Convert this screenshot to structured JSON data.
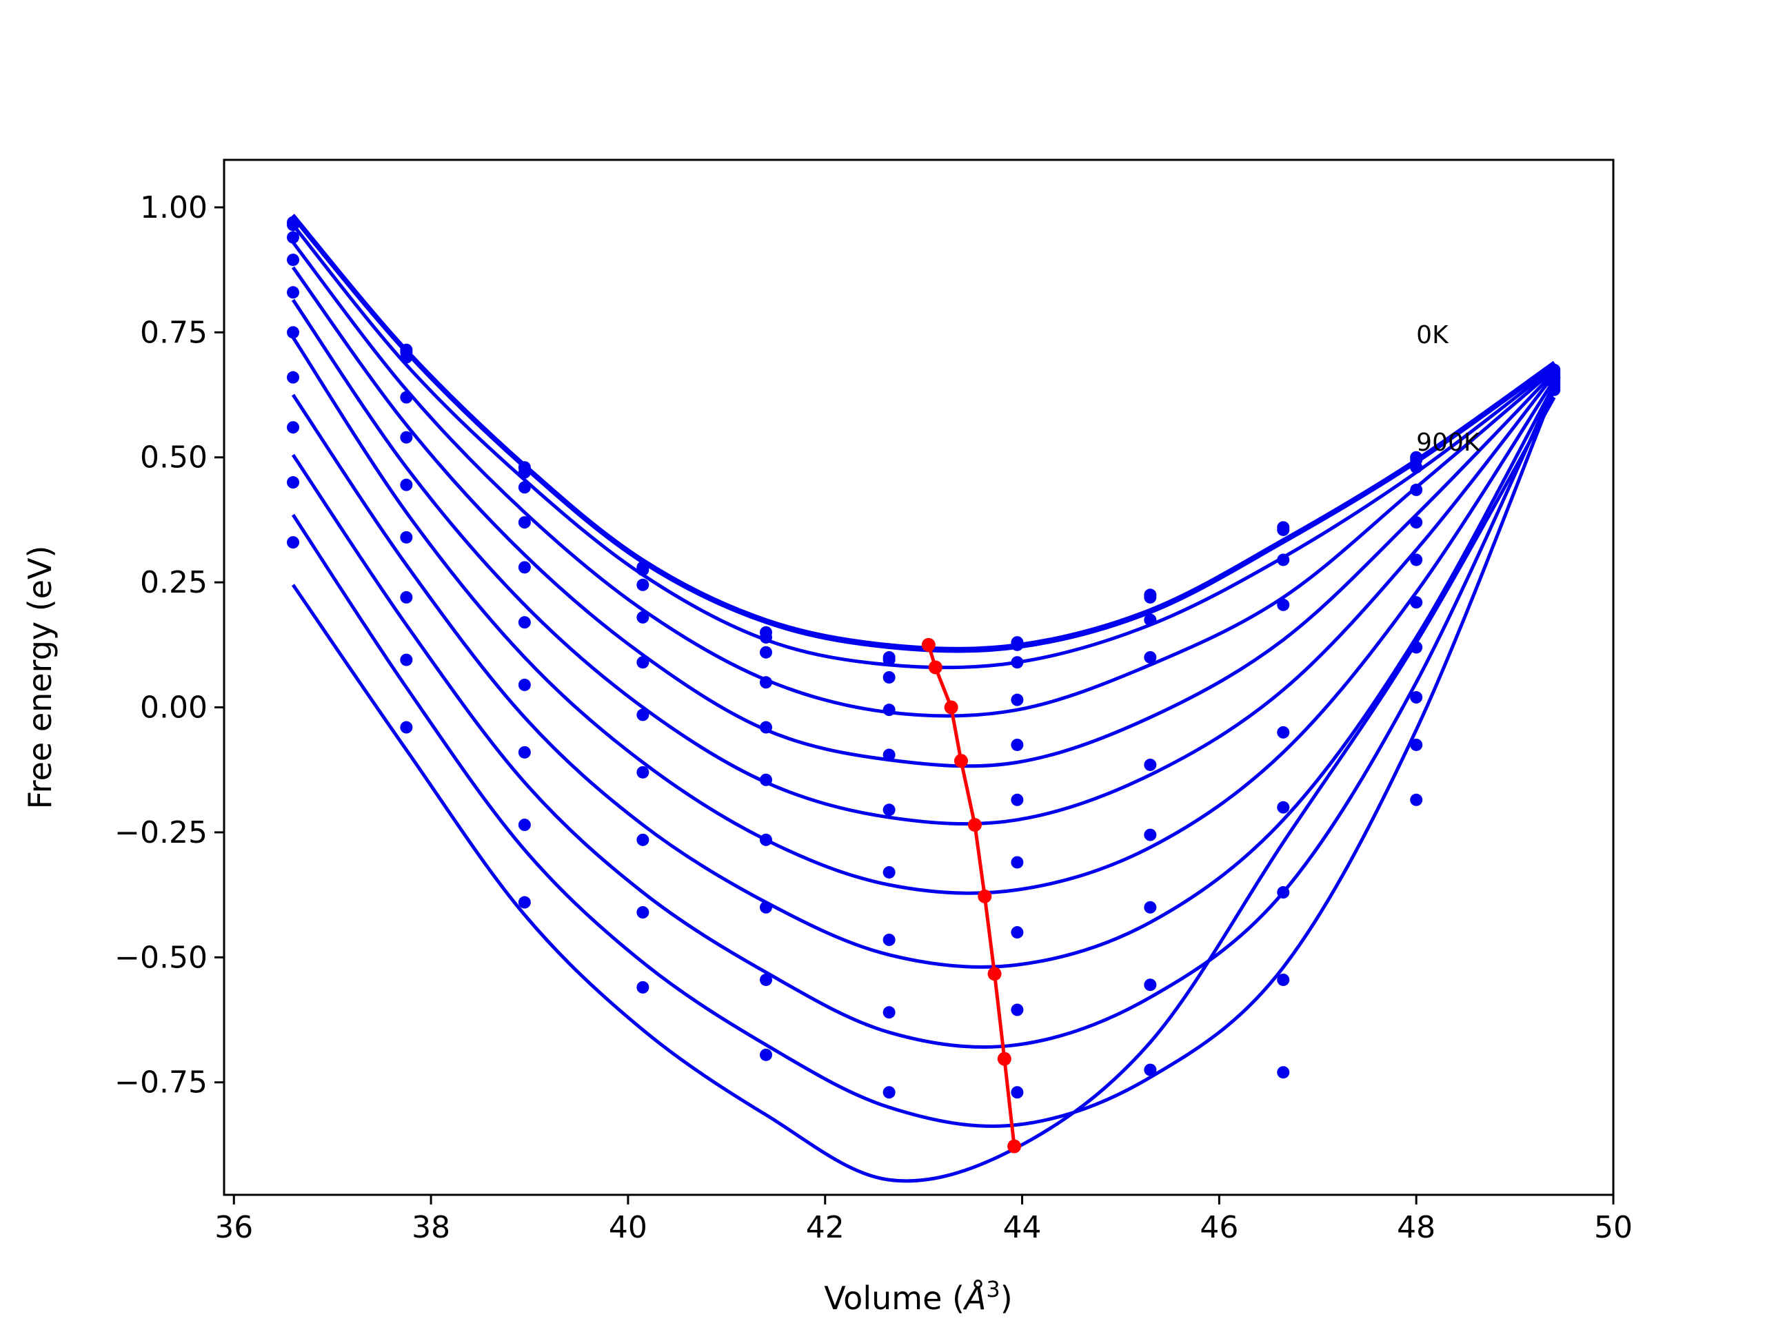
{
  "chart_data": {
    "type": "line",
    "title": "",
    "xlabel": "Volume (Å³)",
    "xlabel_parts": {
      "base": "Volume (",
      "symbol": "Å",
      "exp": "3",
      "close": ")"
    },
    "ylabel": "Free energy (eV)",
    "xlim": [
      35.9,
      50.0
    ],
    "ylim": [
      -0.975,
      1.095
    ],
    "xticks": [
      36,
      38,
      40,
      42,
      44,
      46,
      48,
      50
    ],
    "xtick_labels": [
      "36",
      "38",
      "40",
      "42",
      "44",
      "46",
      "48",
      "50"
    ],
    "yticks": [
      1.0,
      0.75,
      0.5,
      0.25,
      0.0,
      -0.25,
      -0.5,
      -0.75
    ],
    "ytick_labels": [
      "1.00",
      "0.75",
      "0.50",
      "0.25",
      "0.00",
      "−0.25",
      "−0.50",
      "−0.75"
    ],
    "grid": false,
    "annotations": [
      {
        "text": "0K",
        "x": 48.0,
        "y": 0.745
      },
      {
        "text": "900K",
        "x": 48.0,
        "y": 0.53
      }
    ],
    "volumes": [
      36.6,
      37.75,
      38.95,
      40.15,
      41.4,
      42.65,
      43.95,
      45.3,
      46.65,
      48.0,
      49.4
    ],
    "series": [
      {
        "label_index": 0,
        "color": "#0000ee",
        "points": [
          0.97,
          0.71,
          0.47,
          0.28,
          0.15,
          0.1,
          0.13,
          0.22,
          0.36,
          0.5,
          0.67
        ],
        "fit": [
          0.985,
          0.715,
          0.485,
          0.295,
          0.175,
          0.125,
          0.125,
          0.195,
          0.335,
          0.495,
          0.69
        ]
      },
      {
        "color": "#0000ee",
        "points": [
          0.965,
          0.715,
          0.48,
          0.275,
          0.14,
          0.095,
          0.125,
          0.225,
          0.355,
          0.495,
          0.675
        ],
        "fit": [
          0.98,
          0.71,
          0.48,
          0.29,
          0.17,
          0.12,
          0.12,
          0.19,
          0.33,
          0.49,
          0.685
        ]
      },
      {
        "color": "#0000ee",
        "points": [
          0.94,
          0.7,
          0.44,
          0.245,
          0.11,
          0.06,
          0.09,
          0.175,
          0.295,
          0.48,
          0.66
        ],
        "fit": [
          0.965,
          0.685,
          0.455,
          0.265,
          0.135,
          0.085,
          0.09,
          0.165,
          0.3,
          0.47,
          0.68
        ]
      },
      {
        "color": "#0000ee",
        "points": [
          0.895,
          0.62,
          0.37,
          0.18,
          0.05,
          -0.005,
          0.015,
          0.1,
          0.205,
          0.435,
          0.665
        ],
        "fit": [
          0.93,
          0.635,
          0.39,
          0.195,
          0.055,
          -0.01,
          -0.005,
          0.085,
          0.22,
          0.44,
          0.675
        ]
      },
      {
        "color": "#0000ee",
        "points": [
          0.83,
          0.54,
          0.28,
          0.09,
          -0.04,
          -0.095,
          -0.075,
          -0.115,
          -0.05,
          0.37,
          0.66
        ],
        "fit": [
          0.88,
          0.565,
          0.305,
          0.105,
          -0.045,
          -0.105,
          -0.11,
          -0.02,
          0.135,
          0.385,
          0.67
        ]
      },
      {
        "color": "#0000ee",
        "points": [
          0.75,
          0.445,
          0.17,
          -0.015,
          -0.145,
          -0.205,
          -0.185,
          -0.255,
          -0.2,
          0.295,
          0.655
        ],
        "fit": [
          0.815,
          0.48,
          0.205,
          0.0,
          -0.15,
          -0.22,
          -0.225,
          -0.135,
          0.035,
          0.315,
          0.665
        ]
      },
      {
        "color": "#0000ee",
        "points": [
          0.66,
          0.34,
          0.045,
          -0.13,
          -0.265,
          -0.33,
          -0.31,
          -0.4,
          -0.37,
          0.21,
          0.65
        ],
        "fit": [
          0.74,
          0.39,
          0.1,
          -0.11,
          -0.265,
          -0.355,
          -0.365,
          -0.28,
          -0.09,
          0.23,
          0.655
        ]
      },
      {
        "color": "#0000ee",
        "points": [
          0.56,
          0.22,
          -0.09,
          -0.265,
          -0.4,
          -0.465,
          -0.45,
          -0.555,
          -0.545,
          0.12,
          0.645
        ],
        "fit": [
          0.625,
          0.285,
          -0.02,
          -0.235,
          -0.39,
          -0.495,
          -0.515,
          -0.43,
          -0.225,
          0.14,
          0.645
        ]
      },
      {
        "color": "#0000ee",
        "points": [
          0.45,
          0.095,
          -0.235,
          -0.41,
          -0.545,
          -0.61,
          -0.605,
          -0.725,
          -0.73,
          0.02,
          0.64
        ],
        "fit": [
          0.505,
          0.165,
          -0.15,
          -0.37,
          -0.53,
          -0.65,
          -0.675,
          -0.58,
          -0.37,
          0.05,
          0.64
        ]
      },
      {
        "color": "#0000ee",
        "points": [
          0.33,
          -0.04,
          -0.39,
          -0.56,
          -0.695,
          -0.77,
          -0.77,
          null,
          null,
          -0.075,
          0.635
        ],
        "fit": [
          0.385,
          0.04,
          -0.285,
          -0.51,
          -0.675,
          -0.8,
          -0.835,
          -0.74,
          -0.52,
          -0.045,
          0.635
        ]
      },
      {
        "color": "#0000ee",
        "points": [
          null,
          null,
          null,
          null,
          null,
          null,
          null,
          null,
          null,
          -0.185,
          null
        ],
        "fit": [
          0.245,
          -0.085,
          -0.415,
          -0.645,
          -0.815,
          -0.945,
          -0.88,
          -0.67,
          -0.27,
          0.13,
          0.62
        ]
      }
    ],
    "minima": {
      "color": "#ff0000",
      "x": [
        43.05,
        43.12,
        43.28,
        43.38,
        43.52,
        43.62,
        43.72,
        43.82,
        43.92
      ],
      "y": [
        0.125,
        0.08,
        0.0,
        -0.107,
        -0.235,
        -0.378,
        -0.533,
        -0.703,
        -0.878
      ]
    }
  }
}
